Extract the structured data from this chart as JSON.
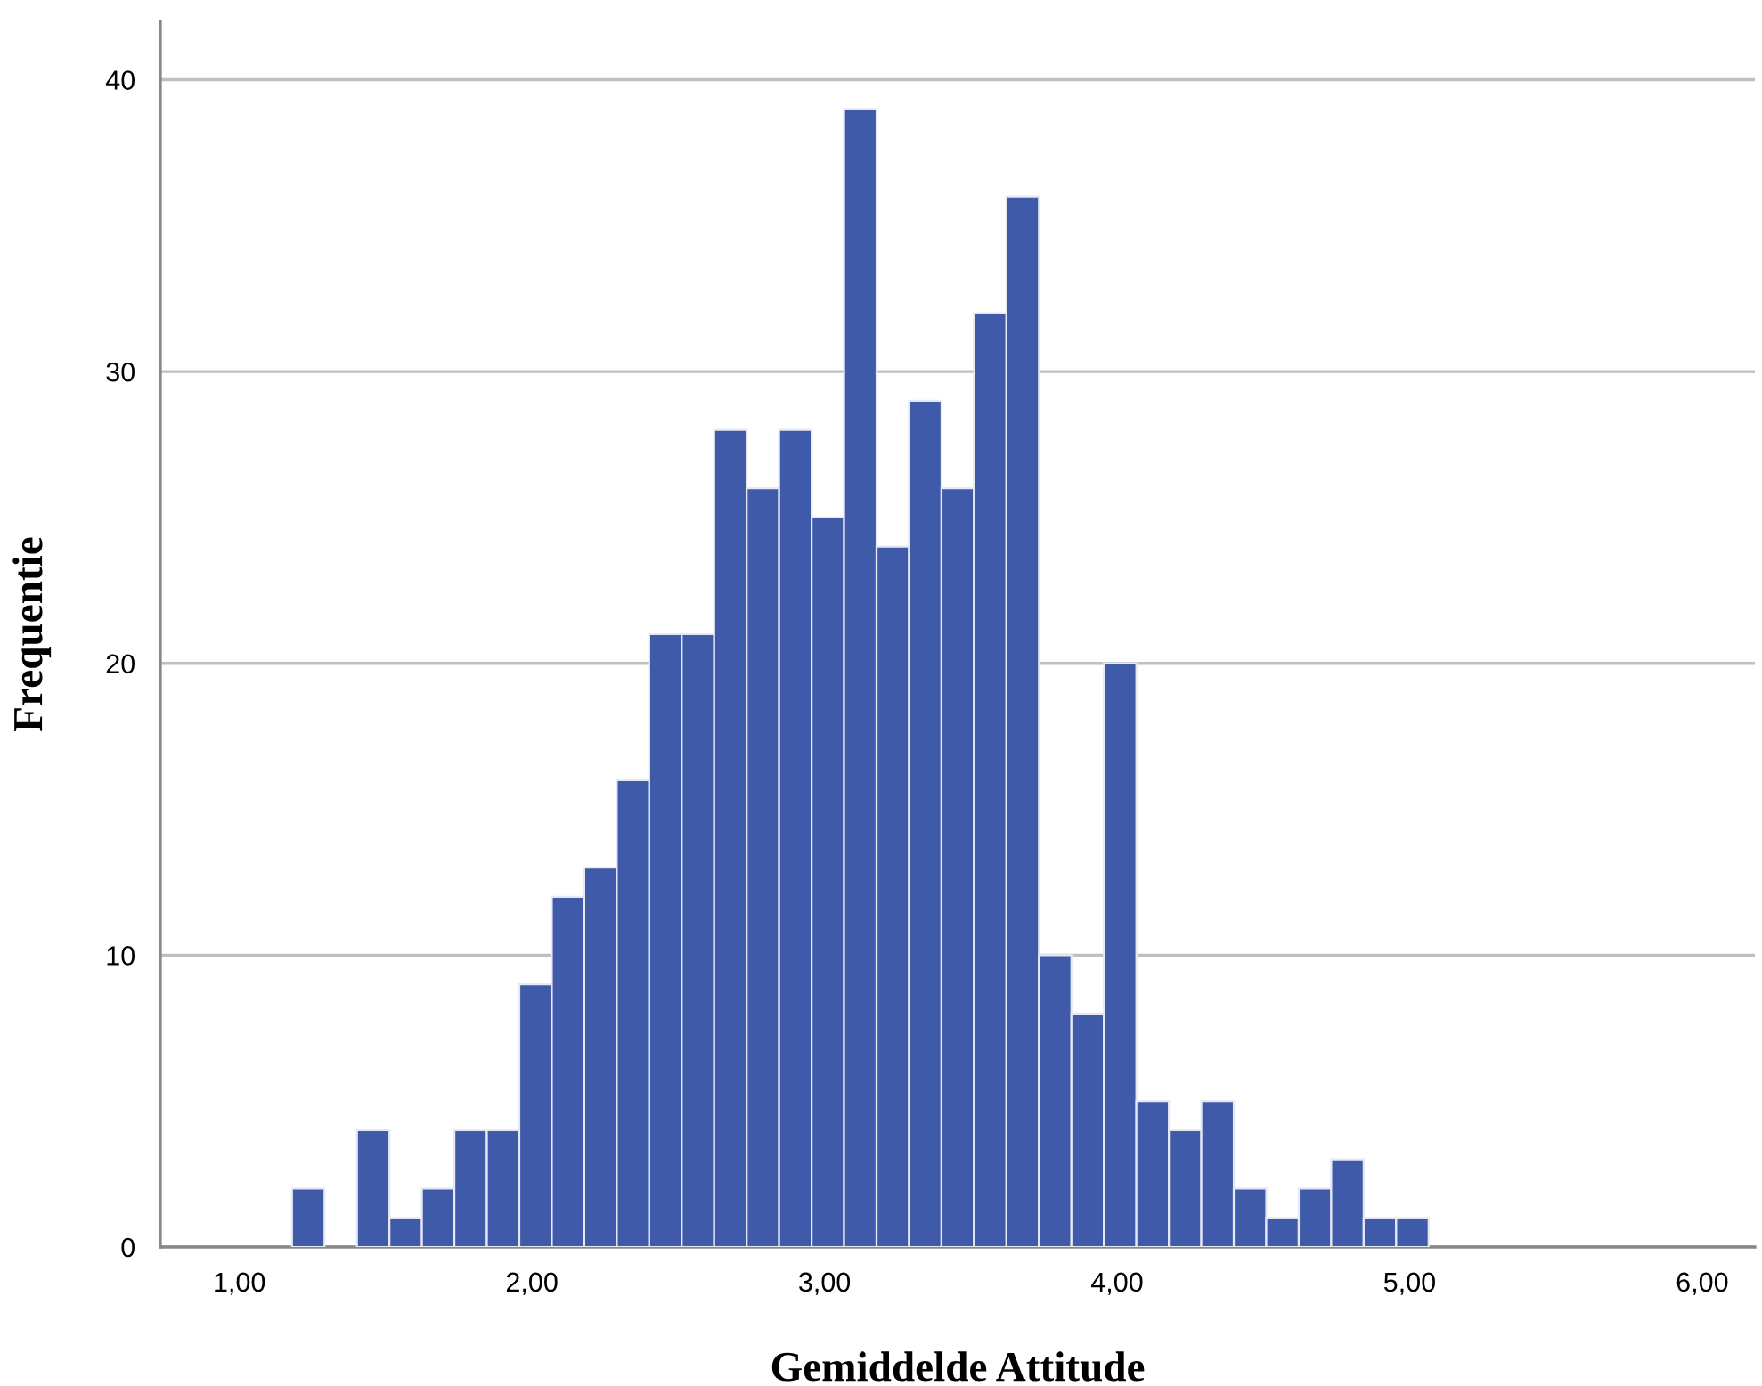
{
  "chart_data": {
    "type": "histogram",
    "xlabel": "Gemiddelde Attitude",
    "ylabel": "Frequentie",
    "bins": [
      1.18,
      1.291,
      1.402,
      1.513,
      1.624,
      1.735,
      1.846,
      1.957,
      2.068,
      2.179,
      2.29,
      2.401,
      2.512,
      2.623,
      2.734,
      2.845,
      2.956,
      3.067,
      3.178,
      3.289,
      3.4,
      3.511,
      3.622,
      3.733,
      3.844,
      3.955,
      4.066,
      4.177,
      4.288,
      4.399,
      4.51,
      4.621,
      4.732,
      4.843,
      4.954,
      5.065
    ],
    "values": [
      2,
      0,
      4,
      1,
      2,
      4,
      4,
      9,
      12,
      13,
      16,
      21,
      21,
      28,
      26,
      28,
      25,
      39,
      24,
      29,
      26,
      32,
      36,
      10,
      8,
      20,
      5,
      4,
      5,
      2,
      1,
      2,
      3,
      1,
      1
    ],
    "color": "#3f5aa9",
    "xlim": [
      0.73,
      6.18
    ],
    "ylim": [
      0,
      42
    ],
    "xticks": [
      {
        "value": 1,
        "label": "1,00"
      },
      {
        "value": 2,
        "label": "2,00"
      },
      {
        "value": 3,
        "label": "3,00"
      },
      {
        "value": 4,
        "label": "4,00"
      },
      {
        "value": 5,
        "label": "5,00"
      },
      {
        "value": 6,
        "label": "6,00"
      }
    ],
    "yticks": [
      0,
      10,
      20,
      30,
      40
    ],
    "grid": "y"
  }
}
